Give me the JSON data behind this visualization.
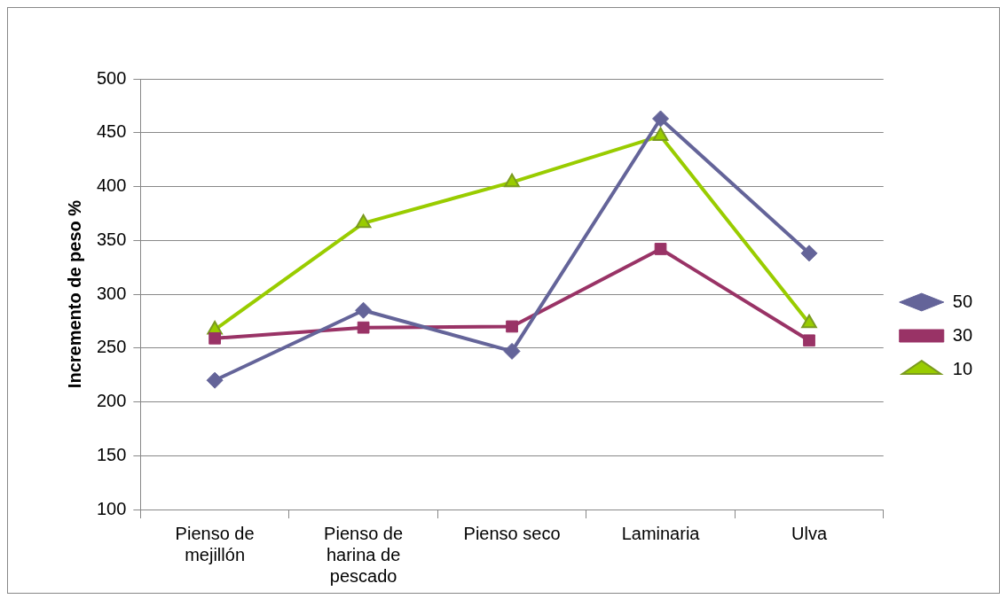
{
  "chart_data": {
    "type": "line",
    "ylabel": "Incremento de peso %",
    "categories": [
      "Pienso de mejillón",
      "Pienso de harina de pescado",
      "Pienso seco",
      "Laminaria",
      "Ulva"
    ],
    "series": [
      {
        "name": "50",
        "color": "#646499",
        "marker": "diamond",
        "values": [
          220,
          285,
          247,
          463,
          338
        ]
      },
      {
        "name": "30",
        "color": "#993366",
        "marker": "square",
        "values": [
          259,
          269,
          270,
          342,
          257
        ]
      },
      {
        "name": "10",
        "color": "#99cc00",
        "marker": "triangle",
        "values": [
          267,
          366,
          404,
          447,
          273
        ]
      }
    ],
    "ylim": [
      100,
      500
    ],
    "yticks": [
      100,
      150,
      200,
      250,
      300,
      350,
      400,
      450,
      500
    ],
    "grid": "y",
    "legend": "right",
    "line_style": "solid"
  }
}
